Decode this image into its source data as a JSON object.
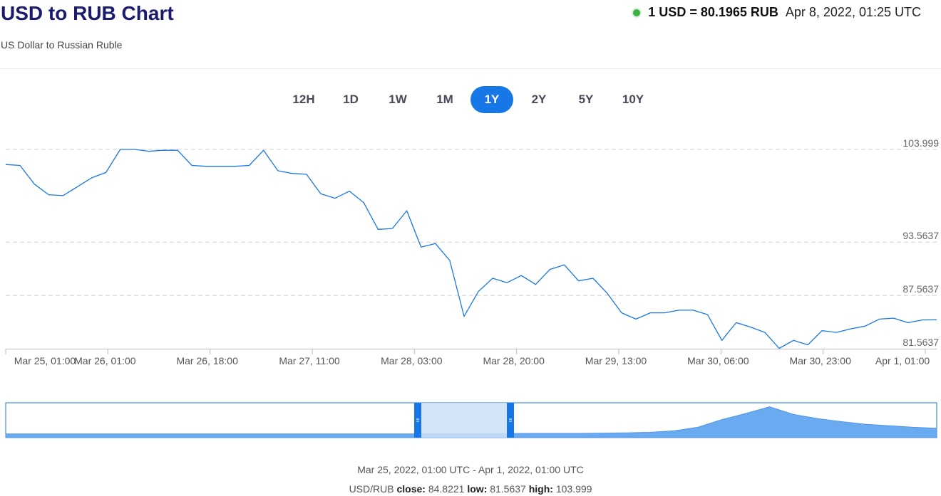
{
  "header": {
    "title": "USD to RUB Chart",
    "subtitle": "US Dollar to Russian Ruble",
    "rate": "1 USD = 80.1965 RUB",
    "timestamp": "Apr 8, 2022, 01:25 UTC"
  },
  "periods": [
    "12H",
    "1D",
    "1W",
    "1M",
    "1Y",
    "2Y",
    "5Y",
    "10Y"
  ],
  "active_period": "1Y",
  "colors": {
    "line": "#1877e6",
    "active_button": "#1877e6",
    "live_dot": "#3cb043",
    "navigator_fill": "#cde1f9",
    "navigator_area": "#6aaaf0"
  },
  "chart_data": {
    "type": "line",
    "series": [
      {
        "x": [
          "Mar 25, 01:00",
          "Mar 25, 06:00",
          "Mar 25, 10:00",
          "Mar 25, 14:00",
          "Mar 25, 18:00",
          "Mar 25, 22:00",
          "Mar 26, 01:00",
          "Mar 26, 03:00",
          "Mar 26, 06:00",
          "Mar 26, 09:00",
          "Mar 26, 12:00",
          "Mar 26, 15:00",
          "Mar 26, 18:00",
          "Mar 26, 22:00",
          "Mar 27, 04:00",
          "Mar 27, 10:00",
          "Mar 27, 16:00",
          "Mar 27, 20:00",
          "Mar 27, 22:00",
          "Mar 28, 00:00",
          "Mar 28, 02:00",
          "Mar 28, 04:00",
          "Mar 28, 06:00",
          "Mar 28, 08:00",
          "Mar 28, 10:00",
          "Mar 28, 12:00",
          "Mar 28, 14:00",
          "Mar 28, 16:00",
          "Mar 28, 18:00",
          "Mar 28, 20:00",
          "Mar 28, 22:00",
          "Mar 29, 00:00",
          "Mar 29, 02:00",
          "Mar 29, 04:00",
          "Mar 29, 06:00",
          "Mar 29, 08:00",
          "Mar 29, 10:00",
          "Mar 29, 12:00",
          "Mar 29, 13:00",
          "Mar 29, 15:00",
          "Mar 29, 18:00",
          "Mar 29, 20:00",
          "Mar 29, 22:00",
          "Mar 30, 00:00",
          "Mar 30, 01:00",
          "Mar 30, 02:00",
          "Mar 30, 04:00",
          "Mar 30, 06:00",
          "Mar 30, 08:00",
          "Mar 30, 10:00",
          "Mar 30, 13:00",
          "Mar 30, 16:00",
          "Mar 30, 18:00",
          "Mar 30, 20:00",
          "Mar 30, 23:00",
          "Mar 31, 01:00",
          "Mar 31, 02:00",
          "Mar 31, 05:00",
          "Mar 31, 07:00",
          "Mar 31, 09:00",
          "Mar 31, 11:00",
          "Mar 31, 13:00",
          "Mar 31, 16:00",
          "Mar 31, 19:00",
          "Mar 31, 21:00",
          "Apr 1, 01:00"
        ],
        "values": [
          102.3,
          102.2,
          100.1,
          98.9,
          98.8,
          99.8,
          100.8,
          101.4,
          104.0,
          104.0,
          103.8,
          103.9,
          103.9,
          102.2,
          102.1,
          102.1,
          102.1,
          102.2,
          103.9,
          101.6,
          101.3,
          101.2,
          99.0,
          98.5,
          99.3,
          98.0,
          95.0,
          95.1,
          97.1,
          93.0,
          93.4,
          91.5,
          85.2,
          88.0,
          89.5,
          89.0,
          89.8,
          88.8,
          90.5,
          91.0,
          89.2,
          89.5,
          87.8,
          85.6,
          84.9,
          85.6,
          85.6,
          85.9,
          85.9,
          85.4,
          82.5,
          84.5,
          84.0,
          83.4,
          81.6,
          82.5,
          82.0,
          83.6,
          83.4,
          83.8,
          84.1,
          84.9,
          85.0,
          84.5,
          84.8,
          84.82
        ]
      }
    ],
    "y_ticks": [
      "103.999",
      "93.5637",
      "87.5637",
      "81.5637"
    ],
    "x_ticks": [
      "Mar 25, 01:00",
      "Mar 26, 01:00",
      "Mar 26, 18:00",
      "Mar 27, 11:00",
      "Mar 28, 03:00",
      "Mar 28, 20:00",
      "Mar 29, 13:00",
      "Mar 30, 06:00",
      "Mar 30, 23:00",
      "Apr 1, 01:00"
    ],
    "ylim": [
      81.5637,
      103.999
    ],
    "grid": "horizontal dashed",
    "navigator_values": [
      0.2,
      0.2,
      0.2,
      0.2,
      0.2,
      0.2,
      0.2,
      0.2,
      0.2,
      0.2,
      0.2,
      0.2,
      0.2,
      0.2,
      0.2,
      0.2,
      0.2,
      0.2,
      0.2,
      0.2,
      0.25,
      0.25,
      0.3,
      0.3,
      0.3,
      0.35,
      0.4,
      0.5,
      0.8,
      1.5,
      3.0,
      4.2,
      5.5,
      4.0,
      3.2,
      2.6,
      2.1,
      1.8,
      1.5,
      1.3
    ]
  },
  "footer": {
    "range": "Mar 25, 2022, 01:00 UTC - Apr 1, 2022, 01:00 UTC",
    "pair": "USD/RUB",
    "close_label": "close:",
    "close": "84.8221",
    "low_label": "low:",
    "low": "81.5637",
    "high_label": "high:",
    "high": "103.999"
  }
}
